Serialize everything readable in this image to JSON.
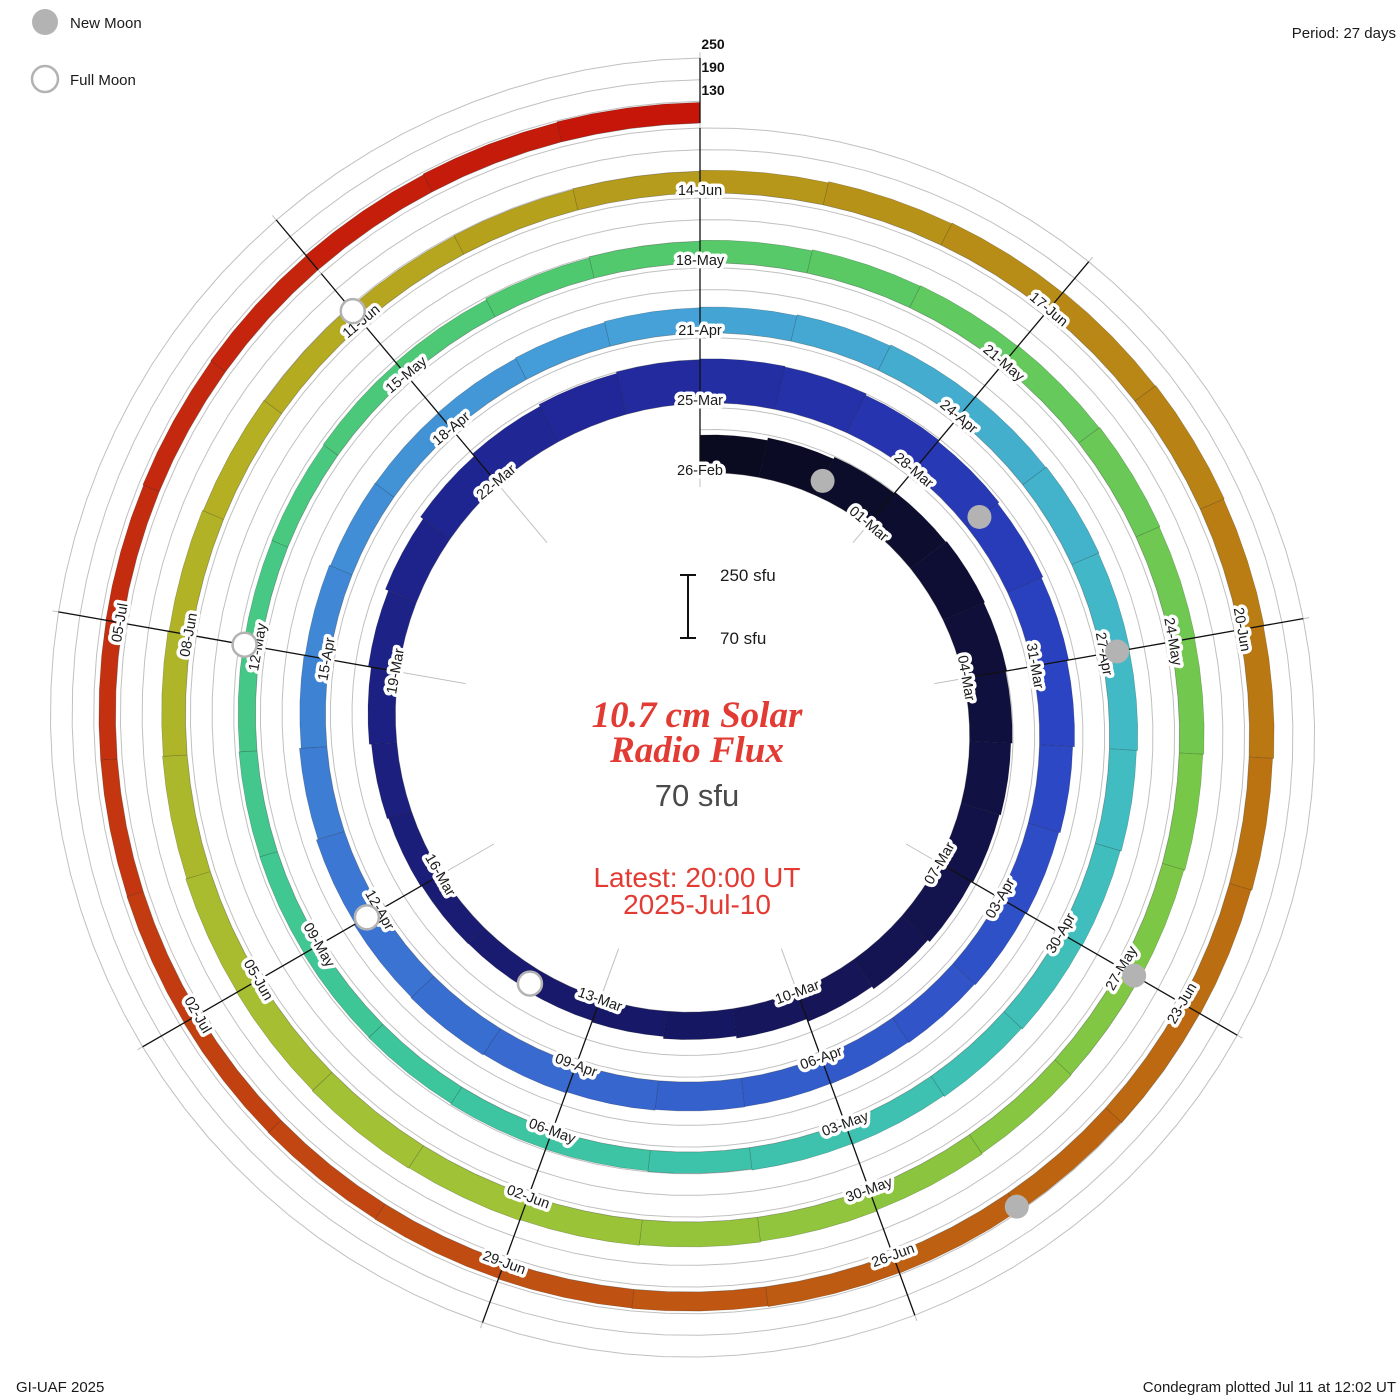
{
  "legend": {
    "new_moon": "New Moon",
    "full_moon": "Full Moon"
  },
  "header": {
    "period": "Period: 27 days"
  },
  "footer": {
    "left": "GI-UAF 2025",
    "right": "Condegram plotted Jul 11 at 12:02 UT"
  },
  "center": {
    "title_line1": "10.7 cm Solar",
    "title_line2": "Radio Flux",
    "baseline_label": "70 sfu",
    "latest_line1": "Latest: 20:00 UT",
    "latest_line2": "2025-Jul-10",
    "scale_top": "250 sfu",
    "scale_bottom": "70 sfu"
  },
  "axis": {
    "radial_labels": [
      "250",
      "190",
      "130"
    ]
  },
  "chart_data": {
    "type": "spiral-bar",
    "title": "10.7 cm Solar Radio Flux",
    "units": "sfu",
    "baseline": 70,
    "radial_tick_values": [
      130,
      190,
      250
    ],
    "period_days": 27,
    "start_date": "2025-02-26",
    "latest": "2025-07-10 20:00 UT",
    "date_labels": [
      {
        "day": 0,
        "label": "26-Feb"
      },
      {
        "day": 3,
        "label": "01-Mar"
      },
      {
        "day": 6,
        "label": "04-Mar"
      },
      {
        "day": 9,
        "label": "07-Mar"
      },
      {
        "day": 12,
        "label": "10-Mar"
      },
      {
        "day": 15,
        "label": "13-Mar"
      },
      {
        "day": 18,
        "label": "16-Mar"
      },
      {
        "day": 21,
        "label": "19-Mar"
      },
      {
        "day": 24,
        "label": "22-Mar"
      },
      {
        "day": 27,
        "label": "25-Mar"
      },
      {
        "day": 30,
        "label": "28-Mar"
      },
      {
        "day": 33,
        "label": "31-Mar"
      },
      {
        "day": 36,
        "label": "03-Apr"
      },
      {
        "day": 39,
        "label": "06-Apr"
      },
      {
        "day": 42,
        "label": "09-Apr"
      },
      {
        "day": 45,
        "label": "12-Apr"
      },
      {
        "day": 48,
        "label": "15-Apr"
      },
      {
        "day": 51,
        "label": "18-Apr"
      },
      {
        "day": 54,
        "label": "21-Apr"
      },
      {
        "day": 57,
        "label": "24-Apr"
      },
      {
        "day": 60,
        "label": "27-Apr"
      },
      {
        "day": 63,
        "label": "30-Apr"
      },
      {
        "day": 66,
        "label": "03-May"
      },
      {
        "day": 69,
        "label": "06-May"
      },
      {
        "day": 72,
        "label": "09-May"
      },
      {
        "day": 75,
        "label": "12-May"
      },
      {
        "day": 78,
        "label": "15-May"
      },
      {
        "day": 81,
        "label": "18-May"
      },
      {
        "day": 84,
        "label": "21-May"
      },
      {
        "day": 87,
        "label": "24-May"
      },
      {
        "day": 90,
        "label": "27-May"
      },
      {
        "day": 93,
        "label": "30-May"
      },
      {
        "day": 96,
        "label": "02-Jun"
      },
      {
        "day": 99,
        "label": "05-Jun"
      },
      {
        "day": 102,
        "label": "08-Jun"
      },
      {
        "day": 105,
        "label": "11-Jun"
      },
      {
        "day": 108,
        "label": "14-Jun"
      },
      {
        "day": 111,
        "label": "17-Jun"
      },
      {
        "day": 114,
        "label": "20-Jun"
      },
      {
        "day": 117,
        "label": "23-Jun"
      },
      {
        "day": 120,
        "label": "26-Jun"
      },
      {
        "day": 123,
        "label": "29-Jun"
      },
      {
        "day": 126,
        "label": "02-Jul"
      },
      {
        "day": 129,
        "label": "05-Jul"
      }
    ],
    "values": [
      175,
      182,
      188,
      192,
      195,
      192,
      188,
      184,
      180,
      175,
      168,
      160,
      152,
      146,
      140,
      136,
      132,
      133,
      136,
      140,
      146,
      154,
      163,
      172,
      180,
      186,
      190,
      192,
      190,
      186,
      182,
      177,
      172,
      167,
      162,
      158,
      155,
      152,
      150,
      149,
      150,
      152,
      155,
      157,
      155,
      151,
      146,
      141,
      138,
      135,
      134,
      135,
      137,
      140,
      142,
      145,
      148,
      150,
      152,
      150,
      148,
      145,
      142,
      140,
      137,
      134,
      132,
      129,
      127,
      126,
      124,
      123,
      121,
      120,
      118,
      117,
      118,
      120,
      123,
      127,
      130,
      133,
      136,
      138,
      140,
      142,
      140,
      138,
      135,
      132,
      130,
      132,
      134,
      137,
      139,
      141,
      143,
      145,
      143,
      141,
      138,
      136,
      133,
      131,
      129,
      127,
      128,
      130,
      133,
      136,
      138,
      140,
      142,
      140,
      138,
      135,
      132,
      130,
      128,
      126,
      125,
      123,
      122,
      120,
      119,
      118,
      117,
      116,
      116,
      117,
      119,
      121,
      123,
      125,
      127
    ],
    "new_moons": [
      {
        "day": 2,
        "date": "2025-02-28"
      },
      {
        "day": 31,
        "date": "2025-03-29"
      },
      {
        "day": 60,
        "date": "2025-04-27"
      },
      {
        "day": 90,
        "date": "2025-05-27"
      },
      {
        "day": 119,
        "date": "2025-06-25"
      }
    ],
    "full_moons": [
      {
        "day": 16,
        "date": "2025-03-14"
      },
      {
        "day": 45,
        "date": "2025-04-12"
      },
      {
        "day": 75,
        "date": "2025-05-12"
      },
      {
        "day": 105,
        "date": "2025-06-11"
      }
    ],
    "color_stops": [
      {
        "day": 0,
        "color": "#0a0a1e"
      },
      {
        "day": 13,
        "color": "#161660"
      },
      {
        "day": 26,
        "color": "#21289b"
      },
      {
        "day": 33,
        "color": "#2a42c2"
      },
      {
        "day": 44,
        "color": "#3a70d2"
      },
      {
        "day": 53,
        "color": "#459fd8"
      },
      {
        "day": 61,
        "color": "#41bcc4"
      },
      {
        "day": 70,
        "color": "#3cc69e"
      },
      {
        "day": 80,
        "color": "#50c96e"
      },
      {
        "day": 89,
        "color": "#79c847"
      },
      {
        "day": 97,
        "color": "#a2c235"
      },
      {
        "day": 104,
        "color": "#b5ad22"
      },
      {
        "day": 110,
        "color": "#b78f17"
      },
      {
        "day": 116,
        "color": "#bb7011"
      },
      {
        "day": 122,
        "color": "#bf5412"
      },
      {
        "day": 128,
        "color": "#c33310"
      },
      {
        "day": 135,
        "color": "#c6140a"
      }
    ],
    "marker_colors": {
      "moon_gray": "#b3b3b3",
      "grid_gray": "#c0c0c0",
      "accent_red": "#e23b33"
    }
  }
}
